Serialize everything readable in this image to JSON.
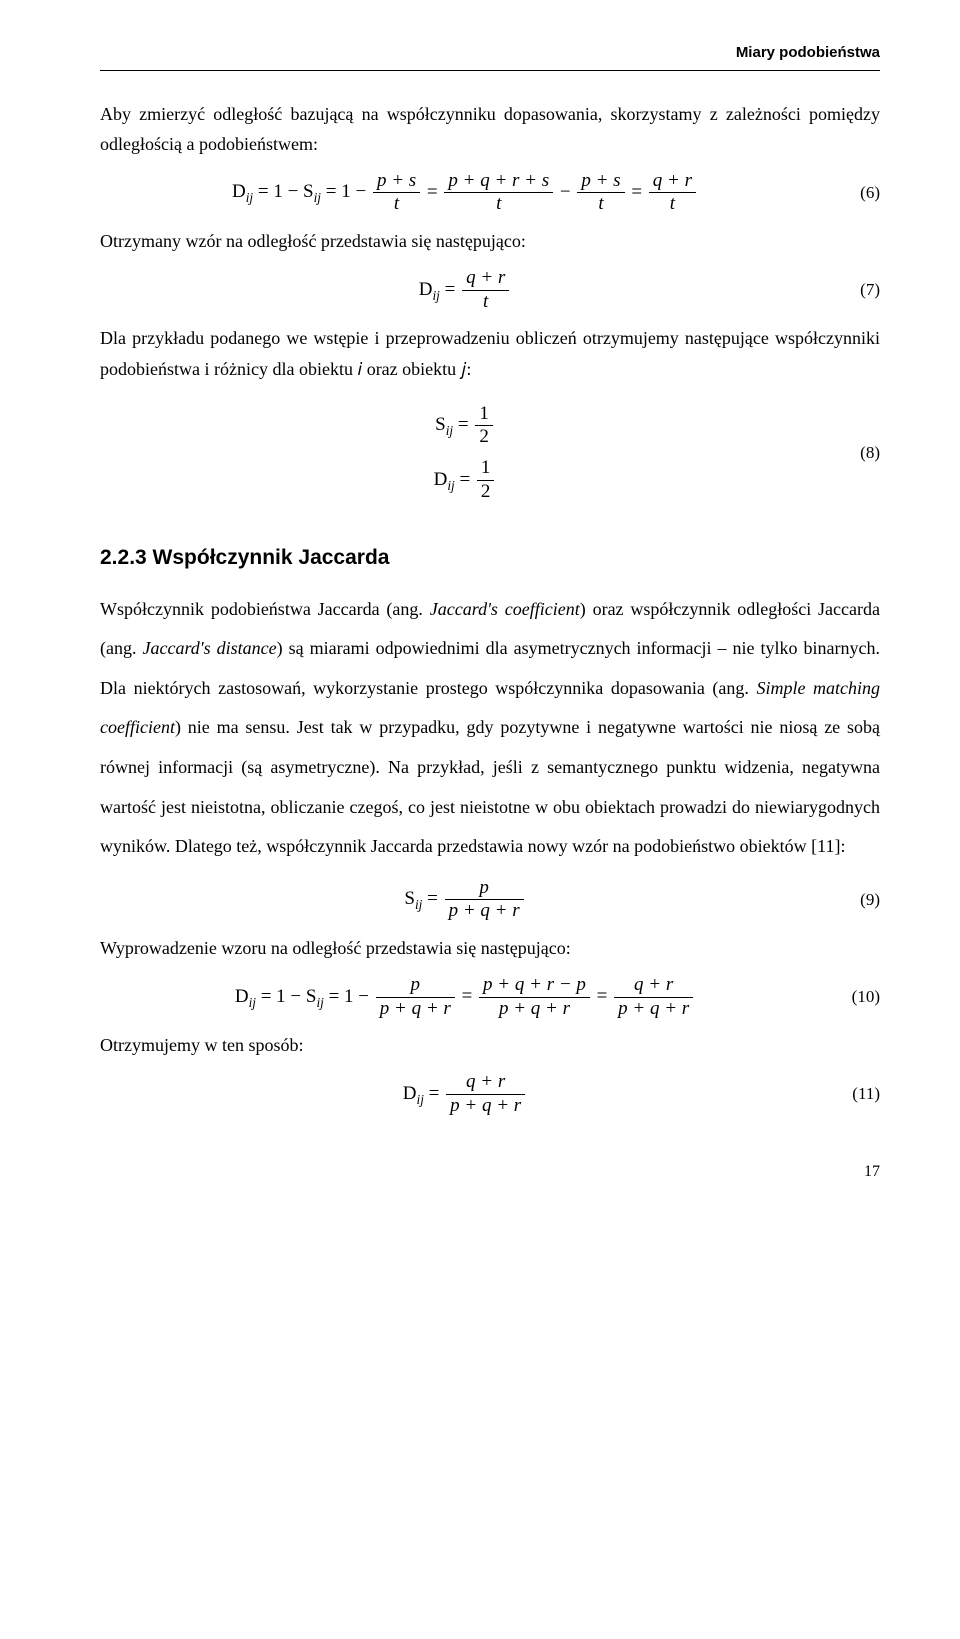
{
  "header": {
    "chapter": "Miary podobieństwa"
  },
  "para1": "Aby  zmierzyć odległość bazującą na współczynniku dopasowania, skorzystamy z zależności pomiędzy odległością a podobieństwem:",
  "eq6": {
    "lhs": "D<sub>ij</sub> = 1 − S<sub>ij</sub> = 1 − ",
    "f1n": "p + s",
    "f1d": "t",
    "mid1": " = ",
    "f2n": "p + q + r + s",
    "f2d": "t",
    "mid2": " − ",
    "f3n": "p + s",
    "f3d": "t",
    "mid3": " = ",
    "f4n": "q + r",
    "f4d": "t",
    "num": "(6)"
  },
  "para2": "Otrzymany wzór na odległość przedstawia się następująco:",
  "eq7": {
    "lhs": "D<sub>ij</sub> = ",
    "fn": "q + r",
    "fd": "t",
    "num": "(7)"
  },
  "para3": "Dla przykładu podanego we wstępie i przeprowadzeniu obliczeń otrzymujemy następujące współczynniki podobieństwa i różnicy dla obiektu 𝑖 oraz obiektu 𝑗:",
  "eq8": {
    "l1_lhs": "S<sub>ij</sub> = ",
    "l1n": "1",
    "l1d": "2",
    "l2_lhs": "D<sub>ij</sub> = ",
    "l2n": "1",
    "l2d": "2",
    "num": "(8)"
  },
  "section": "2.2.3  Współczynnik Jaccarda",
  "para4": "Współczynnik podobieństwa Jaccarda (ang. <span class=\"mi\">Jaccard's coefficient</span>) oraz współczynnik odległości Jaccarda (ang. <span class=\"mi\">Jaccard's distance</span>) są miarami odpowiednimi dla asymetrycznych informacji – nie tylko binarnych. Dla niektórych zastosowań, wykorzystanie prostego współczynnika dopasowania (ang. <span class=\"mi\">Simple matching coefficient</span>) nie ma sensu. Jest tak w przypadku, gdy pozytywne i negatywne wartości nie niosą ze sobą równej informacji (są asymetryczne). Na przykład, jeśli z semantycznego punktu widzenia, negatywna wartość jest nieistotna, obliczanie czegoś, co jest nieistotne w obu obiektach prowadzi do niewiarygodnych wyników. Dlatego też, współczynnik Jaccarda przedstawia nowy wzór na podobieństwo obiektów [11]:",
  "eq9": {
    "lhs": "S<sub>ij</sub> = ",
    "fn": "p",
    "fd": "p + q + r",
    "num": "(9)"
  },
  "para5": "Wyprowadzenie wzoru na odległość przedstawia się następująco:",
  "eq10": {
    "lhs": "D<sub>ij</sub> = 1 − S<sub>ij</sub> = 1 − ",
    "f1n": "p",
    "f1d": "p + q + r",
    "mid1": " = ",
    "f2n": "p + q + r − p",
    "f2d": "p + q + r",
    "mid2": " = ",
    "f3n": "q + r",
    "f3d": "p + q + r",
    "num": "(10)"
  },
  "para6": "Otrzymujemy w ten sposób:",
  "eq11": {
    "lhs": "D<sub>ij</sub> = ",
    "fn": "q + r",
    "fd": "p + q + r",
    "num": "(11)"
  },
  "page": "17"
}
